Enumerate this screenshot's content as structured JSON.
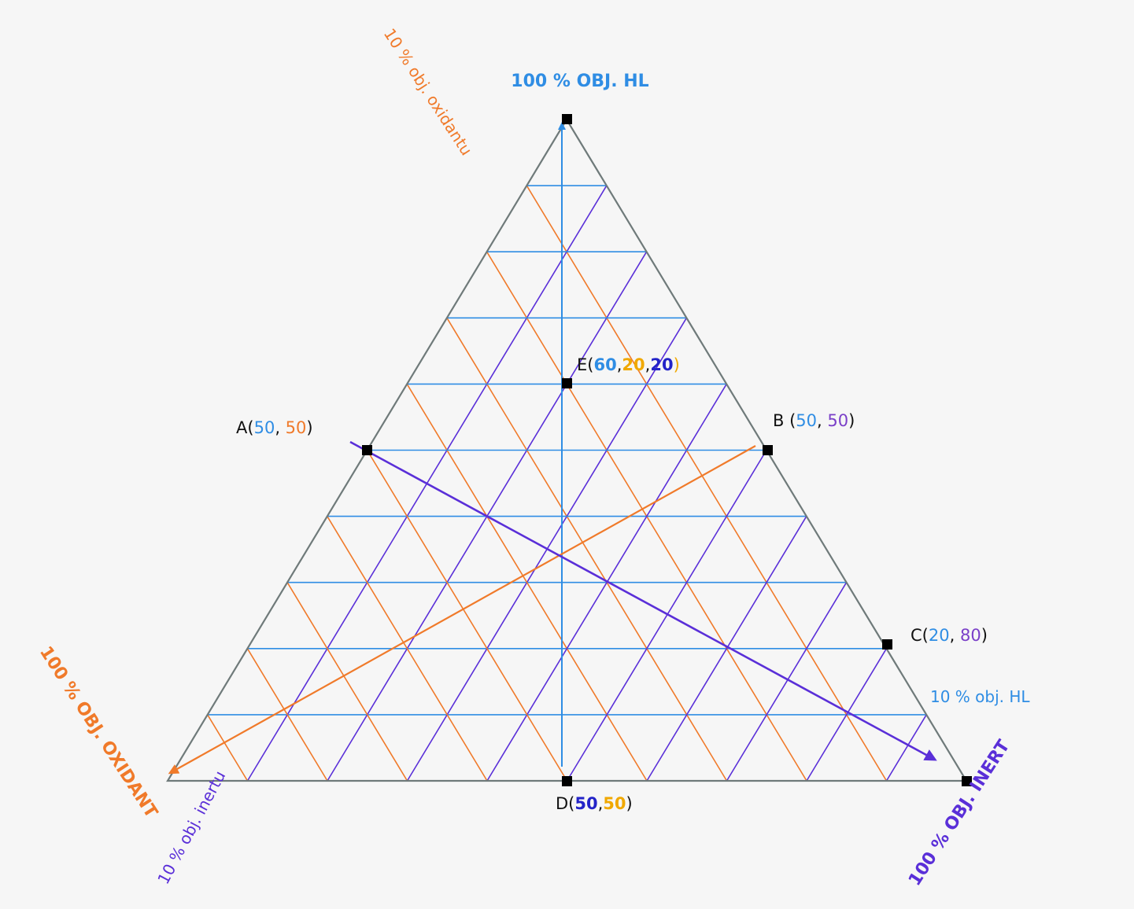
{
  "diagram": {
    "grid_step_percent": 10,
    "colors": {
      "hl": "#2f8de4",
      "oxidant": "#f07a2a",
      "inert": "#5a2fd8",
      "inert_point_label": "#7a3fc8",
      "dark_blue": "#2323c8",
      "gold": "#f0a800",
      "outline": "#6f7a7a",
      "marker": "#000000"
    },
    "axes": {
      "hl_apex": "100 % OBJ. HL",
      "oxidant_corner": "100 % OBJ. OXIDANT",
      "inert_corner": "100 % OBJ. INERT",
      "oxidant_note": "10 % obj. oxidantu",
      "inert_note": "10 % obj. inertu",
      "hl_note": "10 % obj. HL"
    },
    "points": {
      "A": {
        "name": "A",
        "open": "(",
        "v1": "50",
        "sep": ", ",
        "v2": "50",
        "close": ")",
        "hl": 50,
        "oxidant": 50,
        "inert": 0
      },
      "B": {
        "name": "B",
        "open": " (",
        "v1": "50",
        "sep": ", ",
        "v2": "50",
        "close": ")",
        "hl": 50,
        "oxidant": 0,
        "inert": 50
      },
      "C": {
        "name": "C",
        "open": "(",
        "v1": "20",
        "sep": ", ",
        "v2": "80",
        "close": ")",
        "hl": 20,
        "oxidant": 0,
        "inert": 80
      },
      "D": {
        "name": "D",
        "open": "(",
        "v1": "50",
        "sep": ",",
        "v2": "50",
        "close": ")",
        "hl": 0,
        "oxidant": 50,
        "inert": 50
      },
      "E": {
        "name": "E",
        "open": "(",
        "v1": "60",
        "sep": ",",
        "v2": "20",
        "sep2": ",",
        "v3": "20",
        "close": ")",
        "hl": 60,
        "oxidant": 20,
        "inert": 20
      }
    }
  }
}
